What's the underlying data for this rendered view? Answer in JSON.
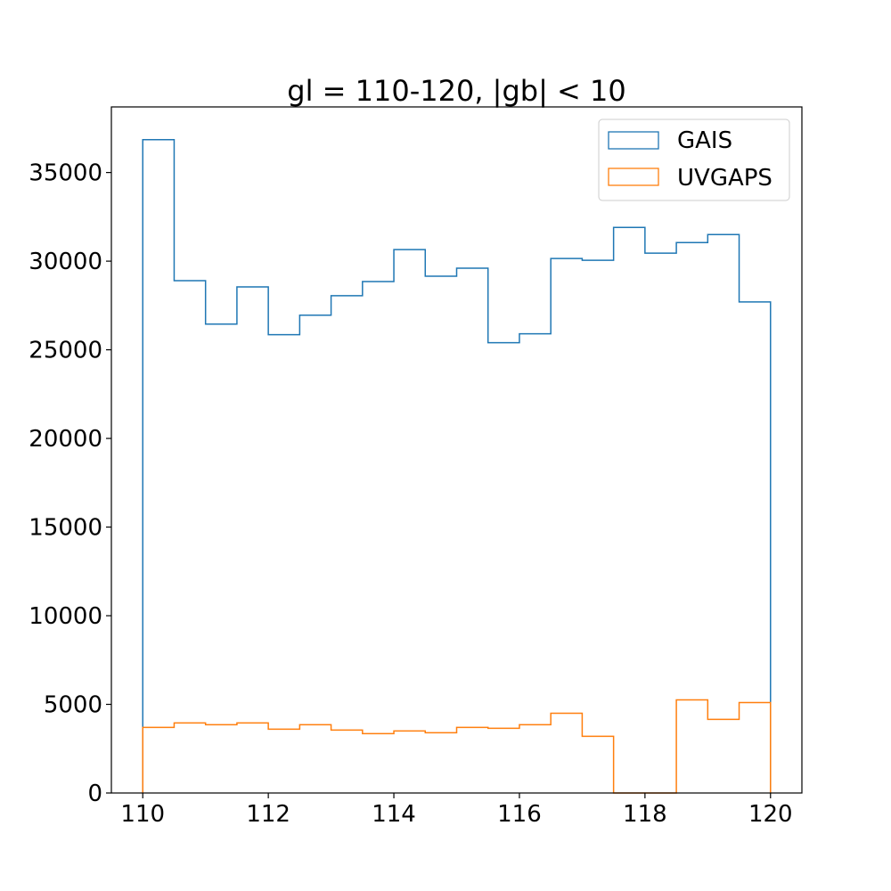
{
  "chart_data": {
    "type": "histogram-step",
    "title": "gl = 110-120, |gb| < 10",
    "xlabel": "",
    "ylabel": "",
    "xlim": [
      109.5,
      120.5
    ],
    "ylim": [
      0,
      38700
    ],
    "x_ticks": [
      110,
      112,
      114,
      116,
      118,
      120
    ],
    "y_ticks": [
      0,
      5000,
      10000,
      15000,
      20000,
      25000,
      30000,
      35000
    ],
    "bin_edges": [
      110,
      110.5,
      111,
      111.5,
      112,
      112.5,
      113,
      113.5,
      114,
      114.5,
      115,
      115.5,
      116,
      116.5,
      117,
      117.5,
      118,
      118.5,
      119,
      119.5,
      120
    ],
    "series": [
      {
        "name": "GAIS",
        "color": "#1f77b4",
        "values": [
          36850,
          28900,
          26450,
          28550,
          25850,
          26950,
          28050,
          28850,
          30650,
          29150,
          29600,
          25400,
          25900,
          30150,
          30050,
          31900,
          30450,
          31050,
          31500,
          27700
        ]
      },
      {
        "name": "UVGAPS",
        "color": "#ff7f0e",
        "values": [
          3700,
          3950,
          3850,
          3950,
          3600,
          3850,
          3550,
          3350,
          3500,
          3400,
          3700,
          3650,
          3850,
          4500,
          3200,
          0,
          0,
          5250,
          4150,
          5100
        ]
      }
    ],
    "legend": {
      "placement": "top-right"
    },
    "grid": false
  }
}
